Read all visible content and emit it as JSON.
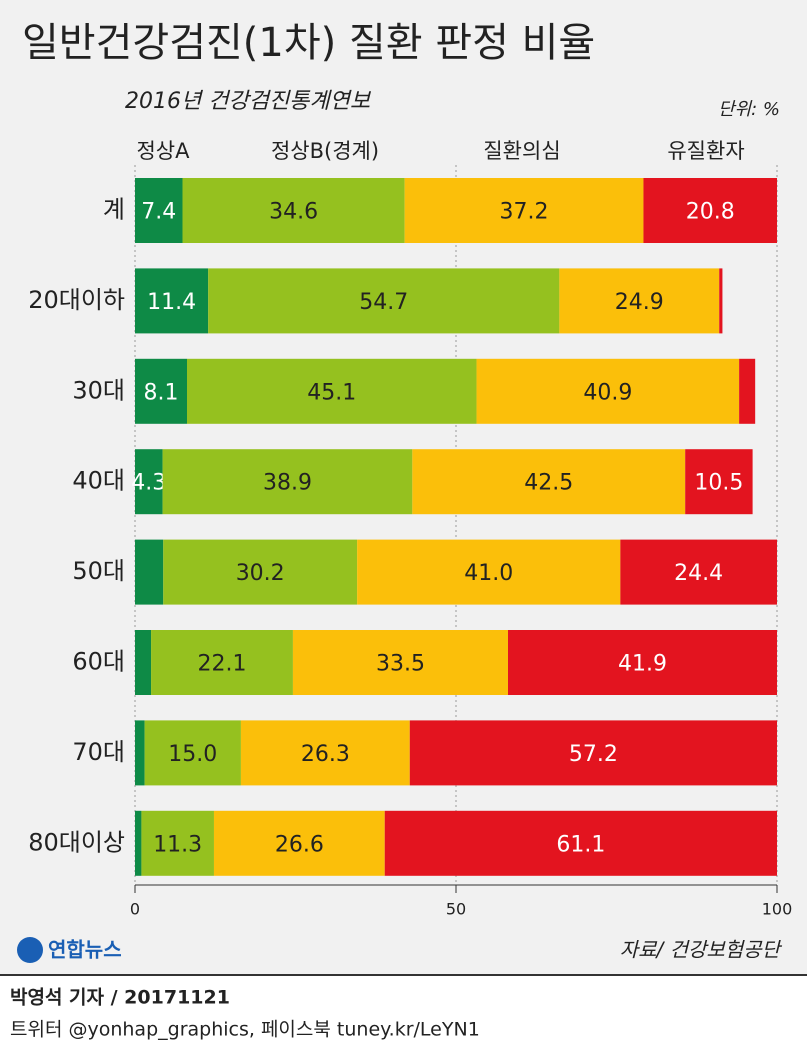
{
  "chart_data": {
    "type": "stacked-bar-horizontal",
    "title": "일반건강검진(1차) 질환 판정 비율",
    "subtitle": "2016년 건강검진통계연보",
    "unit": "단위: %",
    "categories": [
      "계",
      "20대이하",
      "30대",
      "40대",
      "50대",
      "60대",
      "70대",
      "80대이상"
    ],
    "series": [
      {
        "name": "정상A",
        "color": "#0e8a46",
        "values": [
          7.4,
          11.4,
          8.1,
          4.3,
          4.4,
          2.5,
          1.5,
          1.0
        ],
        "value_labels": [
          "7.4",
          "11.4",
          "8.1",
          "4.3",
          null,
          null,
          null,
          null
        ]
      },
      {
        "name": "정상B(경계)",
        "color": "#95c11f",
        "values": [
          34.6,
          54.7,
          45.1,
          38.9,
          30.2,
          22.1,
          15.0,
          11.3
        ],
        "value_labels": [
          "34.6",
          "54.7",
          "45.1",
          "38.9",
          "30.2",
          "22.1",
          "15.0",
          "11.3"
        ]
      },
      {
        "name": "질환의심",
        "color": "#fbbf0a",
        "values": [
          37.2,
          24.9,
          40.9,
          42.5,
          41.0,
          33.5,
          26.3,
          26.6
        ],
        "value_labels": [
          "37.2",
          "24.9",
          "40.9",
          "42.5",
          "41.0",
          "33.5",
          "26.3",
          "26.6"
        ]
      },
      {
        "name": "유질환자",
        "color": "#e3141f",
        "values": [
          20.8,
          0.5,
          2.5,
          10.5,
          24.4,
          41.9,
          57.2,
          61.1
        ],
        "value_labels": [
          "20.8",
          null,
          null,
          "10.5",
          "24.4",
          "41.9",
          "57.2",
          "61.1"
        ]
      }
    ],
    "xlim": [
      0,
      100
    ],
    "xticks": [
      0,
      50,
      100
    ],
    "grid": true
  },
  "footer": {
    "logo": "연합뉴스",
    "source": "자료/ 건강보험공단",
    "byline": "박영석 기자 / 20171121",
    "social": "트위터 @yonhap_graphics, 페이스북 tuney.kr/LeYN1"
  }
}
